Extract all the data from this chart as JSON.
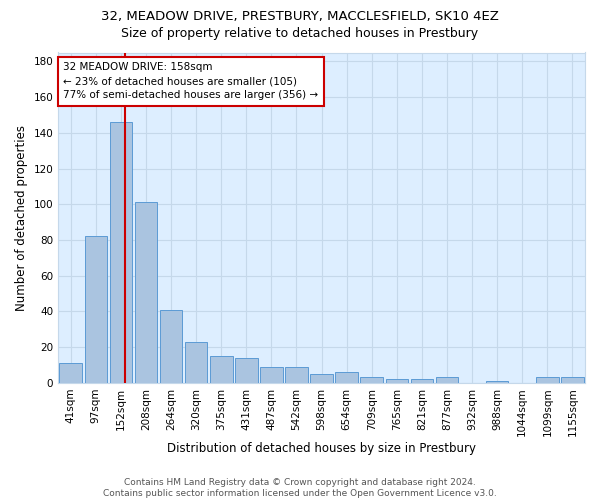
{
  "title1": "32, MEADOW DRIVE, PRESTBURY, MACCLESFIELD, SK10 4EZ",
  "title2": "Size of property relative to detached houses in Prestbury",
  "xlabel": "Distribution of detached houses by size in Prestbury",
  "ylabel": "Number of detached properties",
  "bar_labels": [
    "41sqm",
    "97sqm",
    "152sqm",
    "208sqm",
    "264sqm",
    "320sqm",
    "375sqm",
    "431sqm",
    "487sqm",
    "542sqm",
    "598sqm",
    "654sqm",
    "709sqm",
    "765sqm",
    "821sqm",
    "877sqm",
    "932sqm",
    "988sqm",
    "1044sqm",
    "1099sqm",
    "1155sqm"
  ],
  "bar_values": [
    11,
    82,
    146,
    101,
    41,
    23,
    15,
    14,
    9,
    9,
    5,
    6,
    3,
    2,
    2,
    3,
    0,
    1,
    0,
    3,
    3
  ],
  "bar_color": "#aac4e0",
  "bar_edge_color": "#5b9bd5",
  "vline_x": 2.15,
  "vline_color": "#cc0000",
  "annotation_text": "32 MEADOW DRIVE: 158sqm\n← 23% of detached houses are smaller (105)\n77% of semi-detached houses are larger (356) →",
  "annotation_box_color": "#ffffff",
  "annotation_box_edge_color": "#cc0000",
  "ylim": [
    0,
    185
  ],
  "yticks": [
    0,
    20,
    40,
    60,
    80,
    100,
    120,
    140,
    160,
    180
  ],
  "grid_color": "#c5d8ea",
  "background_color": "#ddeeff",
  "footer_text": "Contains HM Land Registry data © Crown copyright and database right 2024.\nContains public sector information licensed under the Open Government Licence v3.0.",
  "title1_fontsize": 9.5,
  "title2_fontsize": 9,
  "axis_label_fontsize": 8.5,
  "tick_fontsize": 7.5,
  "annotation_fontsize": 7.5,
  "footer_fontsize": 6.5
}
